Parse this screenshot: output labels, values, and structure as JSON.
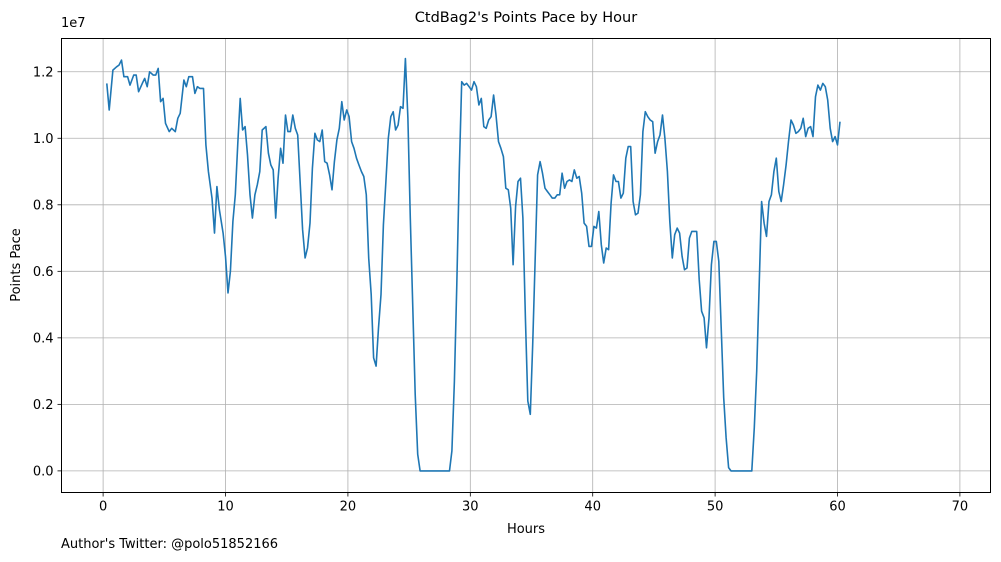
{
  "chart_data": {
    "type": "line",
    "title": "CtdBag2's Points Pace by Hour",
    "xlabel": "Hours",
    "ylabel": "Points Pace",
    "y_offset_label": "1e7",
    "xlim": [
      -3.4,
      72.5
    ],
    "ylim": [
      -0.065,
      1.3
    ],
    "y_unit": "1e7",
    "grid": true,
    "x_ticks": [
      0,
      10,
      20,
      30,
      40,
      50,
      60,
      70
    ],
    "y_ticks": [
      0.0,
      0.2,
      0.4,
      0.6,
      0.8,
      1.0,
      1.2
    ],
    "series": [
      {
        "color": "#1f77b4",
        "points": [
          [
            0.3,
            1.165
          ],
          [
            0.5,
            1.085
          ],
          [
            0.8,
            1.205
          ],
          [
            1.1,
            1.215
          ],
          [
            1.3,
            1.22
          ],
          [
            1.5,
            1.235
          ],
          [
            1.7,
            1.185
          ],
          [
            2.0,
            1.185
          ],
          [
            2.2,
            1.16
          ],
          [
            2.5,
            1.19
          ],
          [
            2.7,
            1.19
          ],
          [
            2.9,
            1.14
          ],
          [
            3.2,
            1.165
          ],
          [
            3.4,
            1.18
          ],
          [
            3.6,
            1.155
          ],
          [
            3.8,
            1.2
          ],
          [
            4.1,
            1.19
          ],
          [
            4.3,
            1.19
          ],
          [
            4.5,
            1.21
          ],
          [
            4.7,
            1.11
          ],
          [
            4.9,
            1.12
          ],
          [
            5.1,
            1.045
          ],
          [
            5.4,
            1.02
          ],
          [
            5.6,
            1.03
          ],
          [
            5.9,
            1.02
          ],
          [
            6.1,
            1.06
          ],
          [
            6.3,
            1.075
          ],
          [
            6.6,
            1.175
          ],
          [
            6.8,
            1.155
          ],
          [
            7.0,
            1.185
          ],
          [
            7.3,
            1.185
          ],
          [
            7.5,
            1.135
          ],
          [
            7.7,
            1.155
          ],
          [
            7.9,
            1.15
          ],
          [
            8.2,
            1.15
          ],
          [
            8.4,
            0.98
          ],
          [
            8.6,
            0.9
          ],
          [
            8.9,
            0.82
          ],
          [
            9.1,
            0.715
          ],
          [
            9.3,
            0.855
          ],
          [
            9.5,
            0.785
          ],
          [
            9.8,
            0.715
          ],
          [
            10.0,
            0.645
          ],
          [
            10.2,
            0.535
          ],
          [
            10.4,
            0.6
          ],
          [
            10.6,
            0.75
          ],
          [
            10.8,
            0.83
          ],
          [
            11.0,
            0.985
          ],
          [
            11.2,
            1.12
          ],
          [
            11.4,
            1.025
          ],
          [
            11.6,
            1.035
          ],
          [
            11.8,
            0.95
          ],
          [
            12.0,
            0.83
          ],
          [
            12.2,
            0.76
          ],
          [
            12.4,
            0.83
          ],
          [
            12.6,
            0.86
          ],
          [
            12.8,
            0.9
          ],
          [
            13.0,
            1.025
          ],
          [
            13.3,
            1.035
          ],
          [
            13.5,
            0.955
          ],
          [
            13.7,
            0.92
          ],
          [
            13.9,
            0.905
          ],
          [
            14.1,
            0.76
          ],
          [
            14.3,
            0.88
          ],
          [
            14.5,
            0.97
          ],
          [
            14.7,
            0.925
          ],
          [
            14.9,
            1.07
          ],
          [
            15.1,
            1.02
          ],
          [
            15.3,
            1.02
          ],
          [
            15.5,
            1.07
          ],
          [
            15.7,
            1.03
          ],
          [
            15.9,
            1.01
          ],
          [
            16.1,
            0.865
          ],
          [
            16.3,
            0.725
          ],
          [
            16.5,
            0.64
          ],
          [
            16.7,
            0.67
          ],
          [
            16.9,
            0.745
          ],
          [
            17.1,
            0.91
          ],
          [
            17.3,
            1.015
          ],
          [
            17.5,
            0.995
          ],
          [
            17.7,
            0.99
          ],
          [
            17.9,
            1.025
          ],
          [
            18.1,
            0.93
          ],
          [
            18.3,
            0.925
          ],
          [
            18.5,
            0.89
          ],
          [
            18.7,
            0.845
          ],
          [
            18.9,
            0.93
          ],
          [
            19.1,
            0.995
          ],
          [
            19.3,
            1.03
          ],
          [
            19.5,
            1.11
          ],
          [
            19.7,
            1.055
          ],
          [
            19.9,
            1.085
          ],
          [
            20.1,
            1.065
          ],
          [
            20.3,
            0.99
          ],
          [
            20.5,
            0.97
          ],
          [
            20.7,
            0.94
          ],
          [
            20.9,
            0.92
          ],
          [
            21.1,
            0.9
          ],
          [
            21.3,
            0.885
          ],
          [
            21.5,
            0.83
          ],
          [
            21.7,
            0.64
          ],
          [
            21.9,
            0.53
          ],
          [
            22.1,
            0.34
          ],
          [
            22.3,
            0.315
          ],
          [
            22.5,
            0.43
          ],
          [
            22.7,
            0.53
          ],
          [
            22.9,
            0.74
          ],
          [
            23.1,
            0.87
          ],
          [
            23.3,
            1.0
          ],
          [
            23.5,
            1.065
          ],
          [
            23.7,
            1.08
          ],
          [
            23.9,
            1.025
          ],
          [
            24.1,
            1.04
          ],
          [
            24.3,
            1.095
          ],
          [
            24.5,
            1.09
          ],
          [
            24.7,
            1.24
          ],
          [
            24.9,
            1.06
          ],
          [
            25.1,
            0.76
          ],
          [
            25.3,
            0.49
          ],
          [
            25.5,
            0.23
          ],
          [
            25.7,
            0.05
          ],
          [
            25.9,
            0.0
          ],
          [
            26.5,
            0.0
          ],
          [
            27.2,
            0.0
          ],
          [
            27.9,
            0.0
          ],
          [
            28.3,
            0.0
          ],
          [
            28.5,
            0.06
          ],
          [
            28.7,
            0.27
          ],
          [
            28.9,
            0.56
          ],
          [
            29.1,
            0.905
          ],
          [
            29.3,
            1.17
          ],
          [
            29.5,
            1.16
          ],
          [
            29.7,
            1.165
          ],
          [
            29.9,
            1.155
          ],
          [
            30.1,
            1.145
          ],
          [
            30.3,
            1.17
          ],
          [
            30.5,
            1.155
          ],
          [
            30.7,
            1.1
          ],
          [
            30.9,
            1.12
          ],
          [
            31.1,
            1.035
          ],
          [
            31.3,
            1.03
          ],
          [
            31.5,
            1.055
          ],
          [
            31.7,
            1.065
          ],
          [
            31.9,
            1.13
          ],
          [
            32.1,
            1.07
          ],
          [
            32.3,
            0.99
          ],
          [
            32.5,
            0.97
          ],
          [
            32.7,
            0.945
          ],
          [
            32.9,
            0.85
          ],
          [
            33.1,
            0.845
          ],
          [
            33.3,
            0.79
          ],
          [
            33.5,
            0.62
          ],
          [
            33.7,
            0.795
          ],
          [
            33.9,
            0.87
          ],
          [
            34.1,
            0.88
          ],
          [
            34.3,
            0.76
          ],
          [
            34.5,
            0.46
          ],
          [
            34.7,
            0.21
          ],
          [
            34.9,
            0.17
          ],
          [
            35.1,
            0.38
          ],
          [
            35.3,
            0.64
          ],
          [
            35.5,
            0.89
          ],
          [
            35.7,
            0.93
          ],
          [
            35.9,
            0.895
          ],
          [
            36.1,
            0.85
          ],
          [
            36.3,
            0.84
          ],
          [
            36.5,
            0.83
          ],
          [
            36.7,
            0.82
          ],
          [
            36.9,
            0.82
          ],
          [
            37.1,
            0.83
          ],
          [
            37.3,
            0.83
          ],
          [
            37.5,
            0.895
          ],
          [
            37.7,
            0.85
          ],
          [
            37.9,
            0.87
          ],
          [
            38.1,
            0.875
          ],
          [
            38.3,
            0.87
          ],
          [
            38.5,
            0.905
          ],
          [
            38.7,
            0.88
          ],
          [
            38.9,
            0.885
          ],
          [
            39.1,
            0.835
          ],
          [
            39.3,
            0.745
          ],
          [
            39.5,
            0.735
          ],
          [
            39.7,
            0.675
          ],
          [
            39.9,
            0.675
          ],
          [
            40.1,
            0.735
          ],
          [
            40.3,
            0.73
          ],
          [
            40.5,
            0.78
          ],
          [
            40.7,
            0.68
          ],
          [
            40.9,
            0.625
          ],
          [
            41.1,
            0.67
          ],
          [
            41.3,
            0.665
          ],
          [
            41.5,
            0.805
          ],
          [
            41.7,
            0.89
          ],
          [
            41.9,
            0.87
          ],
          [
            42.1,
            0.87
          ],
          [
            42.3,
            0.82
          ],
          [
            42.5,
            0.835
          ],
          [
            42.7,
            0.94
          ],
          [
            42.9,
            0.975
          ],
          [
            43.1,
            0.975
          ],
          [
            43.3,
            0.81
          ],
          [
            43.5,
            0.77
          ],
          [
            43.7,
            0.775
          ],
          [
            43.9,
            0.83
          ],
          [
            44.1,
            1.02
          ],
          [
            44.3,
            1.08
          ],
          [
            44.5,
            1.065
          ],
          [
            44.7,
            1.055
          ],
          [
            44.9,
            1.05
          ],
          [
            45.1,
            0.955
          ],
          [
            45.3,
            0.99
          ],
          [
            45.5,
            1.01
          ],
          [
            45.7,
            1.07
          ],
          [
            45.9,
            1.0
          ],
          [
            46.1,
            0.9
          ],
          [
            46.3,
            0.75
          ],
          [
            46.5,
            0.64
          ],
          [
            46.7,
            0.71
          ],
          [
            46.9,
            0.73
          ],
          [
            47.1,
            0.715
          ],
          [
            47.3,
            0.645
          ],
          [
            47.5,
            0.605
          ],
          [
            47.7,
            0.61
          ],
          [
            47.9,
            0.7
          ],
          [
            48.1,
            0.72
          ],
          [
            48.3,
            0.72
          ],
          [
            48.5,
            0.72
          ],
          [
            48.7,
            0.575
          ],
          [
            48.9,
            0.48
          ],
          [
            49.1,
            0.46
          ],
          [
            49.3,
            0.37
          ],
          [
            49.5,
            0.46
          ],
          [
            49.7,
            0.62
          ],
          [
            49.9,
            0.69
          ],
          [
            50.1,
            0.69
          ],
          [
            50.3,
            0.63
          ],
          [
            50.5,
            0.43
          ],
          [
            50.7,
            0.22
          ],
          [
            50.9,
            0.1
          ],
          [
            51.1,
            0.01
          ],
          [
            51.3,
            0.0
          ],
          [
            52.0,
            0.0
          ],
          [
            52.6,
            0.0
          ],
          [
            53.0,
            0.0
          ],
          [
            53.2,
            0.13
          ],
          [
            53.4,
            0.3
          ],
          [
            53.6,
            0.56
          ],
          [
            53.8,
            0.81
          ],
          [
            54.0,
            0.745
          ],
          [
            54.2,
            0.705
          ],
          [
            54.4,
            0.81
          ],
          [
            54.6,
            0.83
          ],
          [
            54.8,
            0.9
          ],
          [
            55.0,
            0.94
          ],
          [
            55.2,
            0.84
          ],
          [
            55.4,
            0.81
          ],
          [
            55.6,
            0.86
          ],
          [
            55.8,
            0.92
          ],
          [
            56.0,
            0.99
          ],
          [
            56.2,
            1.055
          ],
          [
            56.4,
            1.04
          ],
          [
            56.6,
            1.015
          ],
          [
            56.8,
            1.02
          ],
          [
            57.0,
            1.03
          ],
          [
            57.2,
            1.06
          ],
          [
            57.4,
            1.005
          ],
          [
            57.6,
            1.03
          ],
          [
            57.8,
            1.035
          ],
          [
            58.0,
            1.005
          ],
          [
            58.2,
            1.125
          ],
          [
            58.4,
            1.16
          ],
          [
            58.6,
            1.145
          ],
          [
            58.8,
            1.165
          ],
          [
            59.0,
            1.155
          ],
          [
            59.2,
            1.115
          ],
          [
            59.4,
            1.03
          ],
          [
            59.6,
            0.99
          ],
          [
            59.8,
            1.005
          ],
          [
            60.0,
            0.98
          ],
          [
            60.2,
            1.05
          ]
        ]
      }
    ],
    "footnote": "Author's Twitter: @polo51852166"
  }
}
